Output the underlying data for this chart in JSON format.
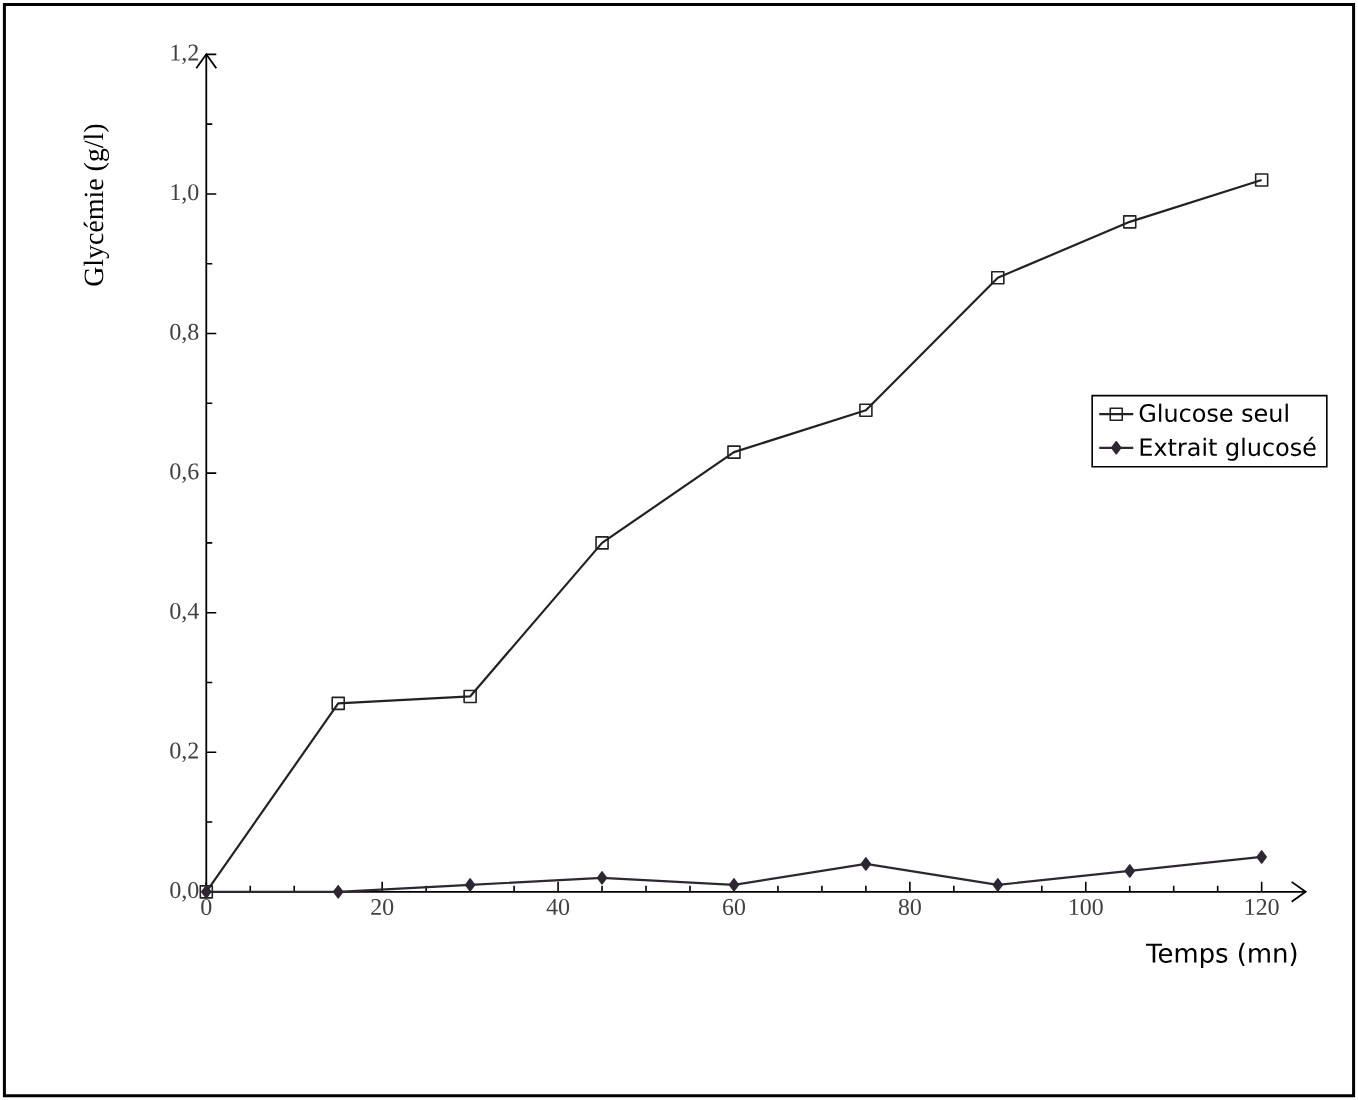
{
  "chart_data": {
    "type": "line",
    "xlabel": "Temps (mn)",
    "ylabel": "Glycémie (g/l)",
    "x": [
      0,
      15,
      30,
      45,
      60,
      75,
      90,
      105,
      120
    ],
    "series": [
      {
        "name": "Glucose seul",
        "color": "#222222",
        "marker": "square",
        "values": [
          0,
          0.27,
          0.28,
          0.5,
          0.63,
          0.69,
          0.88,
          0.96,
          1.02
        ]
      },
      {
        "name": "Extrait glucosé",
        "color": "#2e2733",
        "marker": "diamond",
        "values": [
          0,
          0,
          0.01,
          0.02,
          0.01,
          0.04,
          0.01,
          0.03,
          0.05
        ]
      }
    ],
    "xlim": [
      0,
      125
    ],
    "ylim": [
      0,
      1.2
    ],
    "xticks": [
      0,
      20,
      40,
      60,
      80,
      100,
      120
    ],
    "yticks": [
      {
        "value": 0,
        "label": "0,0"
      },
      {
        "value": 0.2,
        "label": "0,2"
      },
      {
        "value": 0.4,
        "label": "0,4"
      },
      {
        "value": 0.6,
        "label": "0,6"
      },
      {
        "value": 0.8,
        "label": "0,8"
      },
      {
        "value": 1.0,
        "label": "1,0"
      },
      {
        "value": 1.2,
        "label": "1,2"
      }
    ],
    "grid": false,
    "legend": "right",
    "line_style": "solid"
  }
}
